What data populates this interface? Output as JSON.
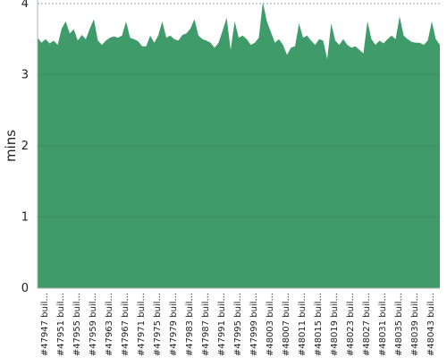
{
  "colors": {
    "area_fill": "#3f9b6a",
    "gridline": "#2f6f4d",
    "axis": "#b0b0b0",
    "text": "#222222"
  },
  "chart_data": {
    "type": "area",
    "title": "",
    "xlabel": "",
    "ylabel": "mins",
    "ylim": [
      0,
      4
    ],
    "yticks": [
      0,
      1,
      2,
      3,
      4
    ],
    "grid": true,
    "x_tick_labels": [
      "#47947 buil...",
      "#47951 buil...",
      "#47955 buil...",
      "#47959 buil...",
      "#47963 buil...",
      "#47967 buil...",
      "#47971 buil...",
      "#47975 buil...",
      "#47979 buil...",
      "#47983 buil...",
      "#47987 buil...",
      "#47991 buil...",
      "#47995 buil...",
      "#47999 buil...",
      "#48003 buil...",
      "#48007 buil...",
      "#48011 buil...",
      "#48015 buil...",
      "#48019 buil...",
      "#48023 buil...",
      "#48027 buil...",
      "#48031 buil...",
      "#48035 buil...",
      "#48039 buil...",
      "#48043 buil..."
    ],
    "series": [
      {
        "values": [
          3.52,
          3.45,
          3.5,
          3.44,
          3.48,
          3.42,
          3.65,
          3.75,
          3.58,
          3.64,
          3.48,
          3.56,
          3.5,
          3.65,
          3.78,
          3.48,
          3.42,
          3.48,
          3.52,
          3.54,
          3.52,
          3.55,
          3.75,
          3.52,
          3.5,
          3.47,
          3.4,
          3.4,
          3.55,
          3.45,
          3.55,
          3.75,
          3.52,
          3.55,
          3.5,
          3.48,
          3.56,
          3.58,
          3.65,
          3.78,
          3.55,
          3.5,
          3.48,
          3.45,
          3.38,
          3.45,
          3.62,
          3.8,
          3.35,
          3.75,
          3.52,
          3.55,
          3.5,
          3.42,
          3.45,
          3.52,
          4.02,
          3.75,
          3.6,
          3.45,
          3.5,
          3.42,
          3.28,
          3.38,
          3.4,
          3.72,
          3.52,
          3.55,
          3.48,
          3.42,
          3.5,
          3.48,
          3.22,
          3.72,
          3.48,
          3.42,
          3.5,
          3.42,
          3.38,
          3.4,
          3.35,
          3.3,
          3.75,
          3.5,
          3.42,
          3.48,
          3.44,
          3.5,
          3.55,
          3.5,
          3.82,
          3.55,
          3.5,
          3.46,
          3.45,
          3.45,
          3.42,
          3.48,
          3.75,
          3.5,
          3.42
        ]
      }
    ]
  }
}
